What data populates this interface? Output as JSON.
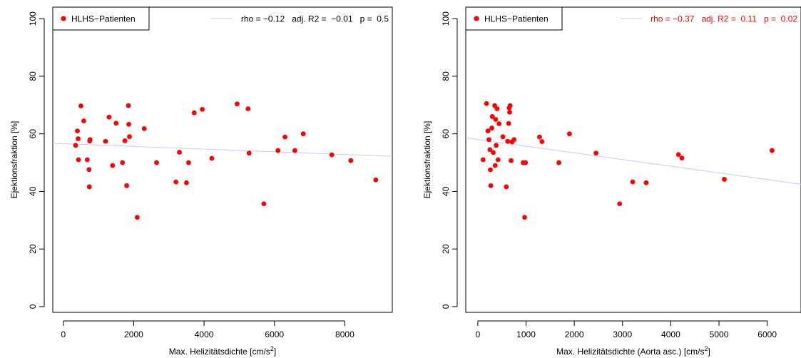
{
  "colors": {
    "points": "#ff0000",
    "fit_line": "#c8c8ff",
    "axes": "#000000",
    "stats_left": "#000000",
    "stats_right": "#ff0000"
  },
  "chart_data": [
    {
      "type": "scatter",
      "title": "",
      "xlabel_main": "Max. Helizitätsdichte [cm/s",
      "xlabel_sup": "2",
      "xlabel_end": "]",
      "ylabel": "Ejektionsfraktion [%]",
      "xlim": [
        -300,
        9350
      ],
      "ylim": [
        -2,
        104
      ],
      "xticks": [
        0,
        2000,
        4000,
        6000,
        8000
      ],
      "yticks": [
        0,
        20,
        40,
        60,
        80,
        100
      ],
      "legend": {
        "position": "top-left",
        "label": "HLHS−Patienten"
      },
      "stats_text": "rho = −0.12   adj. R2 =  −0.01   p =  0.5",
      "fit_line": {
        "x0": -300,
        "y0": 56.7,
        "x1": 9350,
        "y1": 52.2
      },
      "series": [
        {
          "points": [
            [
              350,
              56
            ],
            [
              400,
              61
            ],
            [
              420,
              58.3
            ],
            [
              430,
              51
            ],
            [
              500,
              69.7
            ],
            [
              580,
              64.5
            ],
            [
              680,
              51
            ],
            [
              730,
              47.6
            ],
            [
              740,
              41.6
            ],
            [
              750,
              57.5
            ],
            [
              760,
              58
            ],
            [
              1200,
              57.4
            ],
            [
              1300,
              65.8
            ],
            [
              1400,
              49
            ],
            [
              1500,
              63.7
            ],
            [
              1680,
              50
            ],
            [
              1750,
              57.6
            ],
            [
              1800,
              42
            ],
            [
              1850,
              69.8
            ],
            [
              1860,
              63.3
            ],
            [
              1880,
              59
            ],
            [
              2100,
              31
            ],
            [
              2300,
              61.8
            ],
            [
              2650,
              50
            ],
            [
              3200,
              43.3
            ],
            [
              3300,
              53.6
            ],
            [
              3500,
              43
            ],
            [
              3560,
              50
            ],
            [
              3720,
              67.3
            ],
            [
              3950,
              68.5
            ],
            [
              4220,
              51.5
            ],
            [
              4940,
              70.4
            ],
            [
              5250,
              68.7
            ],
            [
              5280,
              53.3
            ],
            [
              5700,
              35.7
            ],
            [
              6100,
              54.2
            ],
            [
              6300,
              58.9
            ],
            [
              6580,
              54.2
            ],
            [
              6820,
              60
            ],
            [
              7630,
              52.7
            ],
            [
              8170,
              50.7
            ],
            [
              8880,
              44
            ]
          ]
        }
      ]
    },
    {
      "type": "scatter",
      "title": "",
      "xlabel_main": "Max. Helizitätsdichte (Aorta asc.) [cm/s",
      "xlabel_sup": "2",
      "xlabel_end": "]",
      "ylabel": "Ejektionsfraktion [%]",
      "xlim": [
        -250,
        6700
      ],
      "ylim": [
        -2,
        104
      ],
      "xticks": [
        0,
        1000,
        2000,
        3000,
        4000,
        5000,
        6000
      ],
      "yticks": [
        0,
        20,
        40,
        60,
        80,
        100
      ],
      "legend": {
        "position": "top-left",
        "label": "HLHS−Patienten"
      },
      "stats_text": "rho = −0.37   adj. R2 =  0.11   p =  0.02",
      "fit_line": {
        "x0": -250,
        "y0": 58.6,
        "x1": 6700,
        "y1": 42.5
      },
      "series": [
        {
          "points": [
            [
              110,
              51
            ],
            [
              180,
              70.5
            ],
            [
              210,
              61
            ],
            [
              230,
              58
            ],
            [
              250,
              54.5
            ],
            [
              260,
              47.5
            ],
            [
              270,
              42
            ],
            [
              290,
              62
            ],
            [
              300,
              66
            ],
            [
              320,
              53.5
            ],
            [
              350,
              69.8
            ],
            [
              360,
              49
            ],
            [
              370,
              65
            ],
            [
              380,
              56
            ],
            [
              400,
              68.7
            ],
            [
              420,
              51
            ],
            [
              440,
              63.5
            ],
            [
              520,
              59
            ],
            [
              590,
              41.6
            ],
            [
              620,
              57.4
            ],
            [
              640,
              63.6
            ],
            [
              650,
              69
            ],
            [
              660,
              67.5
            ],
            [
              670,
              69.8
            ],
            [
              690,
              50.7
            ],
            [
              710,
              57.2
            ],
            [
              750,
              58
            ],
            [
              940,
              50
            ],
            [
              970,
              31
            ],
            [
              990,
              50
            ],
            [
              1280,
              58.9
            ],
            [
              1330,
              57.3
            ],
            [
              1680,
              50
            ],
            [
              1900,
              60
            ],
            [
              2450,
              53.3
            ],
            [
              2940,
              35.7
            ],
            [
              3210,
              43.3
            ],
            [
              3490,
              43
            ],
            [
              4160,
              52.8
            ],
            [
              4230,
              51.6
            ],
            [
              5110,
              44.2
            ],
            [
              6100,
              54.2
            ]
          ]
        }
      ]
    }
  ]
}
